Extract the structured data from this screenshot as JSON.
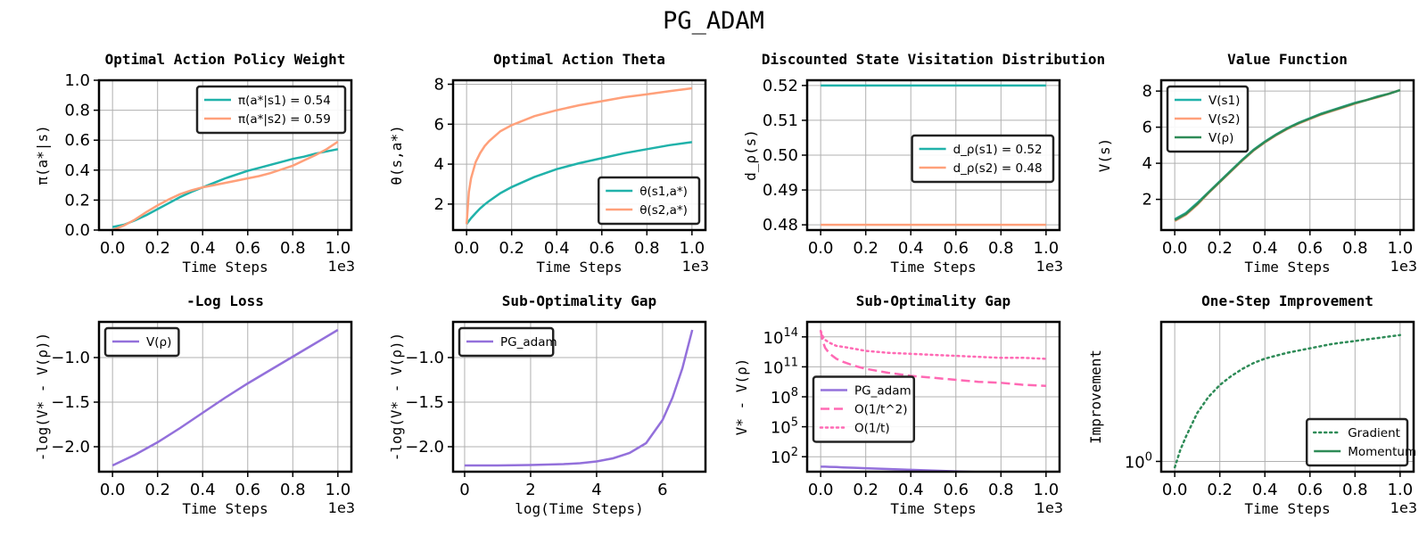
{
  "figure": {
    "title": "PG_ADAM"
  },
  "colors": {
    "teal": "#20b2aa",
    "salmon": "#ffa07a",
    "green": "#2e8b57",
    "purple": "#9370db",
    "pink": "#ff69b4",
    "grid": "#b0b0b0"
  },
  "chart_data": [
    {
      "type": "line",
      "title": "Optimal Action Policy Weight",
      "xlabel": "Time Steps",
      "ylabel": "π(a*|s)",
      "xlim": [
        -0.06,
        1.06
      ],
      "ylim": [
        0,
        1.0
      ],
      "xticks": [
        0,
        0.2,
        0.4,
        0.6,
        0.8,
        1.0
      ],
      "xticklabels": [
        "0.0",
        "0.2",
        "0.4",
        "0.6",
        "0.8",
        "1.0"
      ],
      "yticks": [
        0,
        0.2,
        0.4,
        0.6,
        0.8,
        1.0
      ],
      "yticklabels": [
        "0.0",
        "0.2",
        "0.4",
        "0.6",
        "0.8",
        "1.0"
      ],
      "offset_text": "1e3",
      "grid": true,
      "legend_position": "top-right",
      "x": [
        0,
        0.05,
        0.1,
        0.15,
        0.2,
        0.25,
        0.3,
        0.35,
        0.4,
        0.45,
        0.5,
        0.55,
        0.6,
        0.65,
        0.7,
        0.75,
        0.8,
        0.85,
        0.9,
        0.95,
        1.0
      ],
      "series": [
        {
          "name": "π(a*|s1) = 0.54",
          "color": "teal",
          "style": "solid",
          "values": [
            0.02,
            0.035,
            0.065,
            0.1,
            0.14,
            0.18,
            0.22,
            0.255,
            0.285,
            0.315,
            0.345,
            0.37,
            0.395,
            0.415,
            0.435,
            0.455,
            0.475,
            0.49,
            0.51,
            0.525,
            0.54
          ]
        },
        {
          "name": "π(a*|s2) = 0.59",
          "color": "salmon",
          "style": "solid",
          "values": [
            0.0,
            0.03,
            0.07,
            0.12,
            0.165,
            0.205,
            0.24,
            0.265,
            0.285,
            0.3,
            0.315,
            0.33,
            0.345,
            0.36,
            0.38,
            0.405,
            0.43,
            0.465,
            0.5,
            0.54,
            0.59
          ]
        }
      ]
    },
    {
      "type": "line",
      "title": "Optimal Action Theta",
      "xlabel": "Time Steps",
      "ylabel": "θ(s,a*)",
      "xlim": [
        -0.06,
        1.06
      ],
      "ylim": [
        0.7,
        8.2
      ],
      "xticks": [
        0,
        0.2,
        0.4,
        0.6,
        0.8,
        1.0
      ],
      "xticklabels": [
        "0.0",
        "0.2",
        "0.4",
        "0.6",
        "0.8",
        "1.0"
      ],
      "yticks": [
        2,
        4,
        6,
        8
      ],
      "yticklabels": [
        "2",
        "4",
        "6",
        "8"
      ],
      "offset_text": "1e3",
      "grid": true,
      "legend_position": "bottom-right",
      "x": [
        0,
        0.01,
        0.02,
        0.04,
        0.06,
        0.08,
        0.1,
        0.15,
        0.2,
        0.3,
        0.4,
        0.5,
        0.6,
        0.7,
        0.8,
        0.9,
        1.0
      ],
      "series": [
        {
          "name": "θ(s1,a*)",
          "color": "teal",
          "style": "solid",
          "values": [
            1.0,
            1.15,
            1.3,
            1.55,
            1.78,
            1.98,
            2.15,
            2.55,
            2.85,
            3.35,
            3.75,
            4.05,
            4.3,
            4.55,
            4.75,
            4.95,
            5.1
          ]
        },
        {
          "name": "θ(s2,a*)",
          "color": "salmon",
          "style": "solid",
          "values": [
            1.0,
            2.6,
            3.3,
            4.1,
            4.55,
            4.9,
            5.15,
            5.65,
            5.95,
            6.4,
            6.7,
            6.95,
            7.15,
            7.35,
            7.5,
            7.65,
            7.8
          ]
        }
      ]
    },
    {
      "type": "line",
      "title": "Discounted State Visitation Distribution",
      "xlabel": "Time Steps",
      "ylabel": "d_ρ(s)",
      "xlim": [
        -0.06,
        1.06
      ],
      "ylim": [
        0.4785,
        0.5215
      ],
      "xticks": [
        0,
        0.2,
        0.4,
        0.6,
        0.8,
        1.0
      ],
      "xticklabels": [
        "0.0",
        "0.2",
        "0.4",
        "0.6",
        "0.8",
        "1.0"
      ],
      "yticks": [
        0.48,
        0.49,
        0.5,
        0.51,
        0.52
      ],
      "yticklabels": [
        "0.48",
        "0.49",
        "0.50",
        "0.51",
        "0.52"
      ],
      "offset_text": "1e3",
      "grid": true,
      "legend_position": "center-right",
      "x": [
        0,
        1.0
      ],
      "series": [
        {
          "name": "d_ρ(s1) = 0.52",
          "color": "teal",
          "style": "solid",
          "values": [
            0.52,
            0.52
          ]
        },
        {
          "name": "d_ρ(s2) = 0.48",
          "color": "salmon",
          "style": "solid",
          "values": [
            0.48,
            0.48
          ]
        }
      ]
    },
    {
      "type": "line",
      "title": "Value Function",
      "xlabel": "Time Steps",
      "ylabel": "V(s)",
      "xlim": [
        -0.06,
        1.06
      ],
      "ylim": [
        0.3,
        8.6
      ],
      "xticks": [
        0,
        0.2,
        0.4,
        0.6,
        0.8,
        1.0
      ],
      "xticklabels": [
        "0.0",
        "0.2",
        "0.4",
        "0.6",
        "0.8",
        "1.0"
      ],
      "yticks": [
        2,
        4,
        6,
        8
      ],
      "yticklabels": [
        "2",
        "4",
        "6",
        "8"
      ],
      "offset_text": "1e3",
      "grid": true,
      "legend_position": "top-left",
      "x": [
        0,
        0.05,
        0.1,
        0.15,
        0.2,
        0.25,
        0.3,
        0.35,
        0.4,
        0.45,
        0.5,
        0.55,
        0.6,
        0.65,
        0.7,
        0.75,
        0.8,
        0.85,
        0.9,
        0.95,
        1.0
      ],
      "series": [
        {
          "name": "V(s1)",
          "color": "teal",
          "style": "solid",
          "values": [
            0.9,
            1.25,
            1.8,
            2.4,
            3.0,
            3.6,
            4.2,
            4.75,
            5.2,
            5.6,
            5.95,
            6.25,
            6.5,
            6.75,
            6.95,
            7.15,
            7.35,
            7.5,
            7.7,
            7.85,
            8.05
          ]
        },
        {
          "name": "V(s2)",
          "color": "salmon",
          "style": "solid",
          "values": [
            0.8,
            1.15,
            1.7,
            2.35,
            2.95,
            3.55,
            4.15,
            4.7,
            5.15,
            5.55,
            5.9,
            6.2,
            6.45,
            6.7,
            6.9,
            7.1,
            7.3,
            7.5,
            7.65,
            7.85,
            8.05
          ]
        },
        {
          "name": "V(ρ)",
          "color": "green",
          "style": "solid",
          "values": [
            0.85,
            1.2,
            1.75,
            2.38,
            2.98,
            3.58,
            4.18,
            4.73,
            5.18,
            5.58,
            5.93,
            6.23,
            6.48,
            6.73,
            6.93,
            7.13,
            7.33,
            7.5,
            7.68,
            7.85,
            8.05
          ]
        }
      ]
    },
    {
      "type": "line",
      "title": "-Log Loss",
      "xlabel": "Time Steps",
      "ylabel": "-log(V* - V(ρ))",
      "xlim": [
        -0.06,
        1.06
      ],
      "ylim": [
        -2.28,
        -0.6
      ],
      "xticks": [
        0,
        0.2,
        0.4,
        0.6,
        0.8,
        1.0
      ],
      "xticklabels": [
        "0.0",
        "0.2",
        "0.4",
        "0.6",
        "0.8",
        "1.0"
      ],
      "yticks": [
        -2.0,
        -1.5,
        -1.0
      ],
      "yticklabels": [
        "−2.0",
        "−1.5",
        "−1.0"
      ],
      "offset_text": "1e3",
      "grid": true,
      "legend_position": "top-left",
      "x": [
        0,
        0.1,
        0.2,
        0.3,
        0.4,
        0.5,
        0.6,
        0.7,
        0.8,
        0.9,
        1.0
      ],
      "series": [
        {
          "name": "V(ρ)",
          "color": "purple",
          "style": "solid",
          "values": [
            -2.21,
            -2.09,
            -1.95,
            -1.79,
            -1.62,
            -1.45,
            -1.29,
            -1.14,
            -0.99,
            -0.84,
            -0.69
          ]
        }
      ]
    },
    {
      "type": "line",
      "title": "Sub-Optimality Gap",
      "xlabel": "log(Time Steps)",
      "ylabel": "-log(V* - V(ρ))",
      "xlim": [
        -0.35,
        7.3
      ],
      "ylim": [
        -2.28,
        -0.6
      ],
      "xticks": [
        0,
        2,
        4,
        6
      ],
      "xticklabels": [
        "0",
        "2",
        "4",
        "6"
      ],
      "yticks": [
        -2.0,
        -1.5,
        -1.0
      ],
      "yticklabels": [
        "−2.0",
        "−1.5",
        "−1.0"
      ],
      "grid": true,
      "legend_position": "top-left",
      "x": [
        0,
        1,
        2,
        3,
        3.5,
        4,
        4.5,
        5,
        5.5,
        6,
        6.3,
        6.6,
        6.9
      ],
      "series": [
        {
          "name": "PG_adam",
          "color": "purple",
          "style": "solid",
          "values": [
            -2.21,
            -2.21,
            -2.205,
            -2.195,
            -2.185,
            -2.165,
            -2.13,
            -2.07,
            -1.96,
            -1.7,
            -1.45,
            -1.12,
            -0.69
          ]
        }
      ]
    },
    {
      "type": "line",
      "title": "Sub-Optimality Gap",
      "xlabel": "Time Steps",
      "ylabel": "V* - V(ρ)",
      "yscale": "log",
      "xlim": [
        -0.06,
        1.06
      ],
      "ylim_log10": [
        0.5,
        15.5
      ],
      "xticks": [
        0,
        0.2,
        0.4,
        0.6,
        0.8,
        1.0
      ],
      "xticklabels": [
        "0.0",
        "0.2",
        "0.4",
        "0.6",
        "0.8",
        "1.0"
      ],
      "yticks_log10": [
        2,
        5,
        8,
        11,
        14
      ],
      "yticklabels": [
        {
          "base": "10",
          "exp": "2"
        },
        {
          "base": "10",
          "exp": "5"
        },
        {
          "base": "10",
          "exp": "8"
        },
        {
          "base": "10",
          "exp": "11"
        },
        {
          "base": "10",
          "exp": "14"
        }
      ],
      "offset_text": "1e3",
      "grid": true,
      "legend_position": "center-left",
      "x": [
        0,
        0.005,
        0.01,
        0.02,
        0.04,
        0.07,
        0.1,
        0.15,
        0.2,
        0.3,
        0.4,
        0.5,
        0.6,
        0.7,
        0.8,
        0.9,
        1.0
      ],
      "series": [
        {
          "name": "PG_adam",
          "color": "purple",
          "style": "solid",
          "log10_values": [
            1.0,
            1.0,
            1.0,
            1.0,
            0.98,
            0.96,
            0.93,
            0.89,
            0.85,
            0.77,
            0.69,
            0.62,
            0.54,
            0.46,
            0.39,
            0.31,
            0.23
          ]
        },
        {
          "name": "O(1/t^2)",
          "color": "pink",
          "style": "dashed",
          "log10_values": [
            14.6,
            14.0,
            13.5,
            12.9,
            12.3,
            11.8,
            11.5,
            11.1,
            10.8,
            10.4,
            10.1,
            9.9,
            9.7,
            9.5,
            9.4,
            9.2,
            9.1
          ]
        },
        {
          "name": "O(1/t)",
          "color": "pink",
          "style": "dotted",
          "log10_values": [
            14.6,
            14.3,
            14.0,
            13.7,
            13.4,
            13.1,
            13.0,
            12.8,
            12.6,
            12.4,
            12.3,
            12.2,
            12.1,
            12.0,
            11.9,
            11.9,
            11.8
          ]
        }
      ]
    },
    {
      "type": "line",
      "title": "One-Step Improvement",
      "xlabel": "Time Steps",
      "ylabel": "Improvement",
      "yscale": "log",
      "xlim": [
        -0.06,
        1.06
      ],
      "ylim_log10": [
        -0.07,
        0.95
      ],
      "xticks": [
        0,
        0.2,
        0.4,
        0.6,
        0.8,
        1.0
      ],
      "xticklabels": [
        "0.0",
        "0.2",
        "0.4",
        "0.6",
        "0.8",
        "1.0"
      ],
      "yticks_log10": [
        0
      ],
      "yticklabels": [
        {
          "base": "10",
          "exp": "0"
        }
      ],
      "offset_text": "1e3",
      "grid": true,
      "legend_position": "bottom-right",
      "x": [
        0,
        0.025,
        0.05,
        0.1,
        0.15,
        0.2,
        0.25,
        0.3,
        0.35,
        0.4,
        0.5,
        0.6,
        0.7,
        0.8,
        0.9,
        1.0
      ],
      "series": [
        {
          "name": "Gradient",
          "color": "green",
          "style": "dotted",
          "log10_values": [
            -0.04,
            0.08,
            0.17,
            0.33,
            0.44,
            0.52,
            0.58,
            0.63,
            0.67,
            0.7,
            0.74,
            0.77,
            0.8,
            0.82,
            0.84,
            0.86
          ]
        },
        {
          "name": "Momentum",
          "color": "green",
          "style": "solid",
          "log10_values": []
        }
      ]
    }
  ]
}
